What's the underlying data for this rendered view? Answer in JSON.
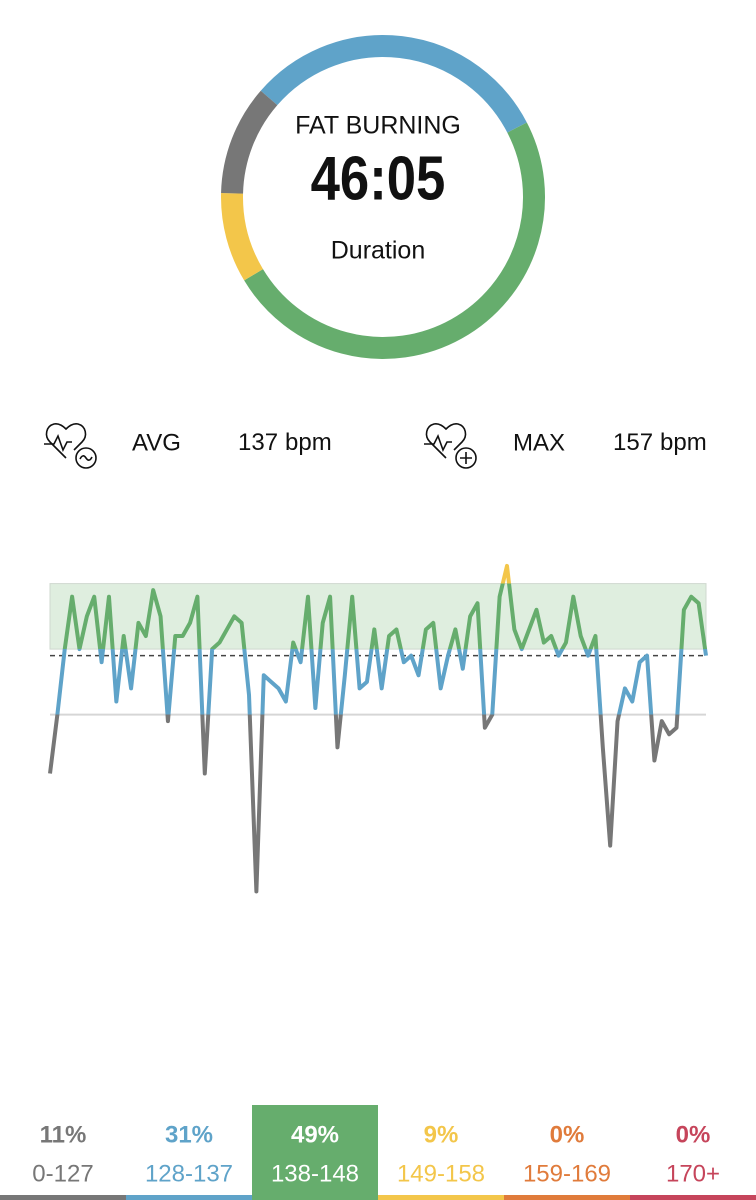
{
  "ring": {
    "label": "FAT BURNING",
    "time": "46:05",
    "caption": "Duration"
  },
  "stats": [
    {
      "label": "AVG",
      "value": 137,
      "unit": "bpm"
    },
    {
      "label": "MAX",
      "value": 157,
      "unit": "bpm"
    }
  ],
  "chart_data": {
    "type": "line",
    "values": [
      119,
      128,
      138,
      146,
      138,
      143,
      146,
      136,
      146,
      130,
      140,
      132,
      142,
      140,
      147,
      143,
      127,
      140,
      140,
      142,
      146,
      119,
      138,
      139,
      141,
      143,
      142,
      131,
      101,
      134,
      133,
      132,
      130,
      139,
      136,
      146,
      129,
      142,
      146,
      123,
      134,
      146,
      132,
      133,
      141,
      132,
      140,
      141,
      136,
      137,
      134,
      141,
      142,
      132,
      137,
      141,
      135,
      143,
      145,
      126,
      128,
      146,
      150.7,
      141,
      138,
      141,
      144,
      139,
      140,
      137,
      139,
      146,
      140,
      137,
      140,
      123,
      108,
      127,
      132,
      130,
      136,
      137,
      121,
      127,
      125,
      126,
      144,
      146,
      145,
      137
    ],
    "ylim": [
      100,
      160
    ],
    "zone_thresholds": [
      128,
      138,
      148
    ]
  },
  "zones": {
    "values": [
      11,
      31,
      49,
      9,
      0,
      0
    ],
    "value_labels": [
      "11%",
      "31%",
      "49%",
      "9%",
      "0%",
      "0%"
    ],
    "ranges": [
      "0-127",
      "128-137",
      "138-148",
      "149-158",
      "159-169",
      "170+"
    ],
    "colors": [
      "#777777",
      "#5fa3c9",
      "#66ad6d",
      "#f3c64a",
      "#e07b3b",
      "#c6455b"
    ],
    "selected": 2
  }
}
